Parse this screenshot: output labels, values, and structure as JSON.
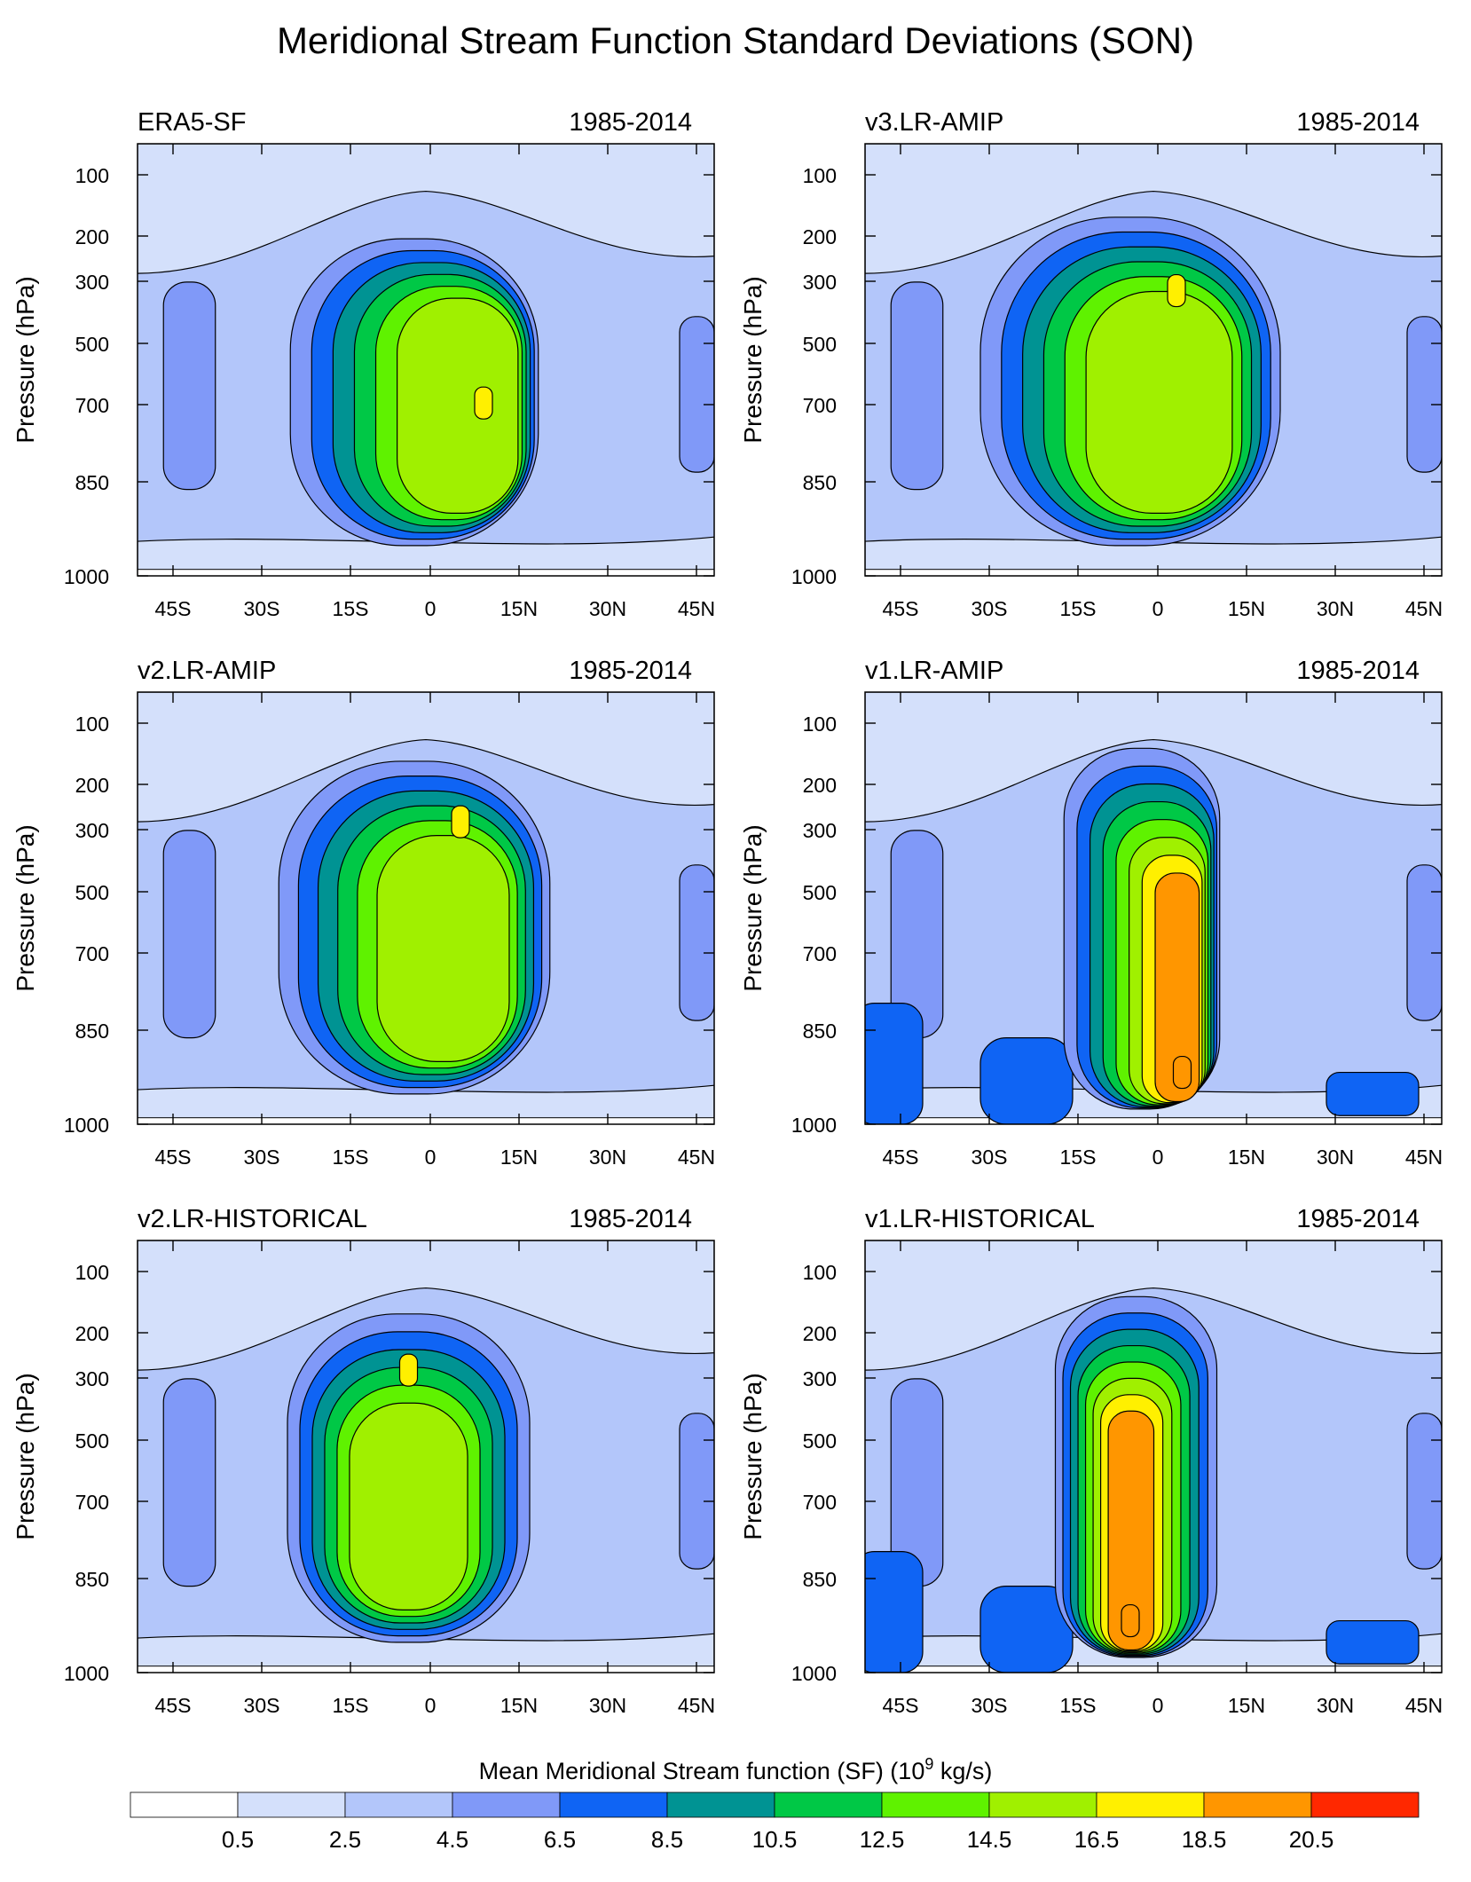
{
  "title": "Meridional Stream Function Standard Deviations (SON)",
  "chart_data": {
    "type": "contour",
    "title": "Meridional Stream Function Standard Deviations (SON)",
    "ylabel": "Pressure (hPa)",
    "y_ticks": [
      "100",
      "200",
      "300",
      "500",
      "700",
      "850",
      "1000"
    ],
    "x_ticks": [
      "45S",
      "30S",
      "15S",
      "0",
      "15N",
      "30N",
      "45N"
    ],
    "panels": [
      {
        "name": "ERA5-SF",
        "period": "1985-2014"
      },
      {
        "name": "v3.LR-AMIP",
        "period": "1985-2014"
      },
      {
        "name": "v2.LR-AMIP",
        "period": "1985-2014"
      },
      {
        "name": "v1.LR-AMIP",
        "period": "1985-2014"
      },
      {
        "name": "v2.LR-HISTORICAL",
        "period": "1985-2014"
      },
      {
        "name": "v1.LR-HISTORICAL",
        "period": "1985-2014"
      }
    ],
    "colorbar": {
      "label_main": "Mean Meridional Stream function (SF) (10",
      "label_sup": "9",
      "label_tail": " kg/s)",
      "levels": [
        "0.5",
        "2.5",
        "4.5",
        "6.5",
        "8.5",
        "10.5",
        "12.5",
        "14.5",
        "16.5",
        "18.5",
        "20.5"
      ],
      "colors": [
        "#ffffff",
        "#d4e0fb",
        "#b3c6fa",
        "#8099f8",
        "#0f64f4",
        "#009393",
        "#00c846",
        "#5ff200",
        "#a0f000",
        "#fff000",
        "#ff9600",
        "#ff2800"
      ]
    }
  }
}
